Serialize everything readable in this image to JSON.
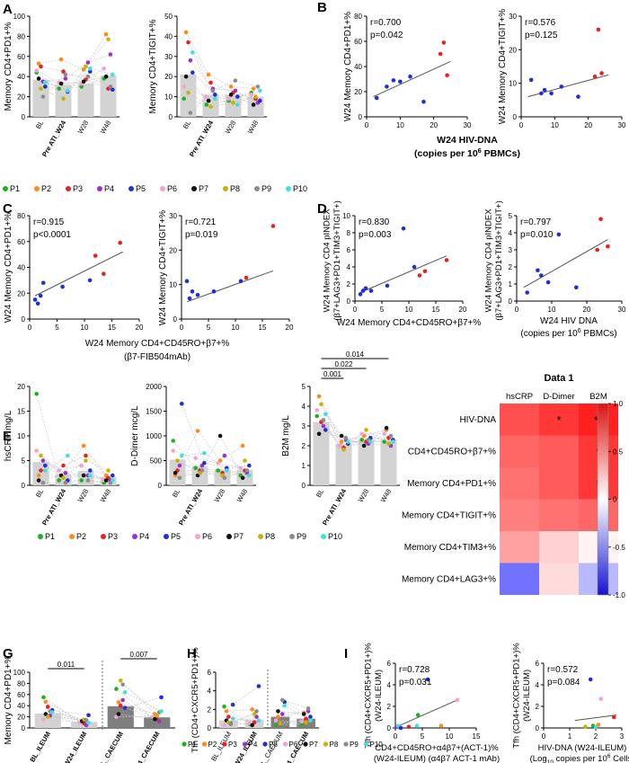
{
  "panels": [
    "A",
    "B",
    "C",
    "D",
    "E",
    "F",
    "G",
    "H",
    "I"
  ],
  "legend_patients": [
    "P1",
    "P2",
    "P3",
    "P4",
    "P5",
    "P6",
    "P7",
    "P8",
    "P9",
    "P10"
  ],
  "colors": {
    "patients": [
      "#1db31d",
      "#ff8c1a",
      "#e62222",
      "#9b30d0",
      "#1f2fd6",
      "#f5a0d8",
      "#111111",
      "#c8b400",
      "#8c8c8c",
      "#40e0e0"
    ],
    "bar_light": "#d3d3d3",
    "bar_dark": "#7f7f7f",
    "fit_line": "#555555"
  },
  "chart_data": [
    {
      "id": "A1",
      "type": "bar",
      "panel": "A",
      "ylabel": "Memory CD4+PD1+%",
      "categories": [
        "BL",
        "Pre ATI_W24",
        "W28",
        "W48"
      ],
      "values": [
        37,
        32,
        33,
        41
      ],
      "ylim": [
        0,
        100
      ],
      "yticks": [
        0,
        20,
        40,
        60,
        80,
        100
      ],
      "points": [
        [
          44,
          53,
          50,
          35,
          30,
          46,
          38,
          28,
          20,
          34
        ],
        [
          28,
          57,
          45,
          38,
          25,
          34,
          33,
          18,
          42,
          26
        ],
        [
          30,
          47,
          37,
          54,
          45,
          33,
          35,
          50,
          40,
          48
        ],
        [
          38,
          82,
          28,
          62,
          27,
          48,
          40,
          77,
          30,
          42
        ]
      ]
    },
    {
      "id": "A2",
      "type": "bar",
      "panel": "A",
      "ylabel": "Memory CD4+TIGIT+%",
      "categories": [
        "BL",
        "Pre ATI_W24",
        "W28",
        "W48"
      ],
      "values": [
        21,
        11,
        11,
        10
      ],
      "ylim": [
        0,
        50
      ],
      "yticks": [
        0,
        10,
        20,
        30,
        40,
        50
      ],
      "points": [
        [
          9,
          42,
          37,
          28,
          22,
          15,
          20,
          12,
          2,
          32
        ],
        [
          6,
          21,
          17,
          14,
          11,
          10,
          8,
          5,
          13,
          9
        ],
        [
          8,
          15,
          12,
          13,
          10,
          9,
          11,
          7,
          18,
          6
        ],
        [
          12,
          14,
          9,
          7,
          8,
          11,
          6,
          10,
          15,
          13
        ]
      ]
    },
    {
      "id": "B1",
      "type": "scatter",
      "panel": "B",
      "ylabel": "W24 Memory CD4+PD1+%",
      "r": "r=0.700",
      "p": "p=0.042",
      "xlim": [
        0,
        30
      ],
      "ylim": [
        0,
        80
      ],
      "xticks": [
        0,
        10,
        20,
        30
      ],
      "yticks": [
        0,
        20,
        40,
        60,
        80
      ],
      "x": [
        3,
        6,
        8,
        10,
        17,
        13,
        22,
        23,
        24
      ],
      "y": [
        15,
        24,
        29,
        28,
        12,
        32,
        50,
        59,
        33
      ],
      "c": [
        4,
        4,
        4,
        4,
        4,
        4,
        2,
        2,
        2
      ],
      "fit": [
        [
          2,
          16
        ],
        [
          25,
          44
        ]
      ]
    },
    {
      "id": "B2",
      "type": "scatter",
      "panel": "B",
      "ylabel": "W24 Memory CD4+TIGIT+%",
      "r": "r=0.576",
      "p": "p=0.125",
      "xlim": [
        0,
        30
      ],
      "ylim": [
        0,
        30
      ],
      "xticks": [
        0,
        10,
        20,
        30
      ],
      "yticks": [
        0,
        10,
        20,
        30
      ],
      "x": [
        3,
        6,
        7,
        9,
        12,
        17,
        22,
        23,
        24
      ],
      "y": [
        11,
        7,
        8,
        7,
        9,
        6,
        12,
        26,
        13
      ],
      "c": [
        4,
        4,
        4,
        4,
        4,
        4,
        2,
        2,
        2
      ],
      "fit": [
        [
          2,
          6
        ],
        [
          26,
          12.5
        ]
      ]
    },
    {
      "id": "C1",
      "type": "scatter",
      "panel": "C",
      "ylabel": "W24 Memory CD4+PD1+%",
      "r": "r=0.915",
      "p": "p<0.0001",
      "xlim": [
        0,
        20
      ],
      "ylim": [
        0,
        80
      ],
      "xticks": [
        0,
        5,
        10,
        15,
        20
      ],
      "yticks": [
        0,
        20,
        40,
        60,
        80
      ],
      "x": [
        1,
        1.5,
        2,
        2.5,
        6,
        11,
        12,
        13.5,
        16.5
      ],
      "y": [
        15,
        12,
        18,
        28,
        25,
        30,
        49,
        35,
        59
      ],
      "c": [
        4,
        4,
        4,
        4,
        4,
        4,
        2,
        2,
        2
      ],
      "fit": [
        [
          1,
          18
        ],
        [
          17,
          52
        ]
      ]
    },
    {
      "id": "C2",
      "type": "scatter",
      "panel": "C",
      "ylabel": "W24 Memory CD4+TIGIT+%",
      "r": "r=0.721",
      "p": "p=0.019",
      "xlim": [
        0,
        20
      ],
      "ylim": [
        0,
        30
      ],
      "xticks": [
        0,
        5,
        10,
        15,
        20
      ],
      "yticks": [
        0,
        10,
        20,
        30
      ],
      "x": [
        1,
        1.5,
        2,
        3,
        6,
        11,
        12,
        17
      ],
      "y": [
        11,
        6,
        8,
        7,
        8,
        11,
        12,
        27
      ],
      "c": [
        4,
        4,
        4,
        4,
        4,
        4,
        2,
        2
      ],
      "fit": [
        [
          1,
          5
        ],
        [
          17,
          14
        ]
      ]
    },
    {
      "id": "D1",
      "type": "scatter",
      "panel": "D",
      "ylabel": "W24 Memory CD4 pINDEX (β7+LAG3+PD1+TIM3+TIGIT+)",
      "r": "r=0.830",
      "p": "p=0.003",
      "xlim": [
        0,
        20
      ],
      "ylim": [
        0,
        10
      ],
      "xticks": [
        0,
        5,
        10,
        15,
        20
      ],
      "yticks": [
        0,
        2,
        4,
        6,
        8,
        10
      ],
      "x": [
        1,
        1.5,
        2,
        3,
        6,
        9,
        11,
        12,
        13,
        17
      ],
      "y": [
        0.8,
        1.2,
        1.5,
        1.2,
        1.8,
        8.5,
        4.0,
        3.0,
        3.5,
        4.8
      ],
      "c": [
        4,
        4,
        4,
        4,
        4,
        4,
        4,
        2,
        2,
        2
      ],
      "fit": [
        [
          1,
          1
        ],
        [
          17,
          5.3
        ]
      ]
    },
    {
      "id": "D2",
      "type": "scatter",
      "panel": "D",
      "ylabel": "W24 Memory CD4 pINDEX (β7+LAG3+PD1+TIM3+TIGIT+)",
      "r": "r=0.797",
      "p": "p=0.010",
      "xlim": [
        0,
        30
      ],
      "ylim": [
        0,
        5
      ],
      "xticks": [
        0,
        10,
        20,
        30
      ],
      "yticks": [
        0,
        1,
        2,
        3,
        4,
        5
      ],
      "x": [
        3,
        6,
        7,
        9,
        12,
        17,
        23,
        24,
        26
      ],
      "y": [
        0.5,
        1.8,
        1.5,
        1.1,
        3.9,
        0.8,
        3.0,
        4.8,
        3.2
      ],
      "c": [
        4,
        4,
        4,
        4,
        4,
        4,
        2,
        2,
        2
      ],
      "fit": [
        [
          2,
          0.8
        ],
        [
          26,
          3.6
        ]
      ]
    },
    {
      "id": "E1",
      "type": "bar",
      "panel": "E",
      "ylabel": "hsCRP mg/L",
      "categories": [
        "BL",
        "Pre ATI_W24",
        "W28",
        "W48"
      ],
      "values": [
        4.7,
        2.2,
        2.9,
        1.7
      ],
      "ylim": [
        0,
        20
      ],
      "yticks": [
        0,
        5,
        10,
        15,
        20
      ],
      "points": [
        [
          18.5,
          2,
          3,
          5,
          4,
          7,
          1,
          6,
          0.5,
          3
        ],
        [
          1,
          2,
          4,
          2.5,
          1,
          3,
          2,
          1.5,
          0.5,
          6
        ],
        [
          1,
          8,
          6,
          2,
          3,
          4,
          2,
          5,
          1,
          2
        ],
        [
          0.5,
          2,
          1.5,
          1,
          2,
          1,
          1,
          3,
          0.5,
          1
        ]
      ]
    },
    {
      "id": "E2",
      "type": "bar",
      "panel": "E",
      "ylabel": "D-Dimer mcg/L",
      "categories": [
        "BL",
        "Pre ATI_W24",
        "W28",
        "W48"
      ],
      "values": [
        520,
        380,
        320,
        310
      ],
      "ylim": [
        0,
        2000
      ],
      "yticks": [
        0,
        500,
        1000,
        1500,
        2000
      ],
      "points": [
        [
          900,
          200,
          300,
          400,
          1650,
          700,
          250,
          500,
          150,
          600
        ],
        [
          350,
          1100,
          300,
          400,
          450,
          550,
          200,
          250,
          300,
          650
        ],
        [
          300,
          500,
          250,
          600,
          350,
          450,
          1000,
          200,
          150,
          300
        ],
        [
          200,
          800,
          300,
          250,
          400,
          350,
          150,
          500,
          300,
          200
        ]
      ]
    },
    {
      "id": "E3",
      "type": "bar",
      "panel": "E",
      "ylabel": "B2M mg/L",
      "categories": [
        "BL",
        "Pre ATI_W24",
        "W28",
        "W48"
      ],
      "values": [
        3.2,
        2.1,
        2.3,
        2.3
      ],
      "ylim": [
        0,
        5
      ],
      "yticks": [
        0,
        1,
        2,
        3,
        4,
        5
      ],
      "points": [
        [
          3.5,
          4.5,
          3.2,
          3.0,
          2.8,
          3.8,
          2.6,
          4.1,
          3.3,
          3.6
        ],
        [
          2.0,
          2.2,
          1.9,
          2.3,
          2.1,
          2.0,
          2.5,
          1.8,
          2.4,
          2.2
        ],
        [
          2.3,
          2.5,
          2.2,
          2.1,
          2.4,
          2.6,
          2.0,
          2.8,
          2.3,
          2.2
        ],
        [
          2.2,
          2.8,
          2.4,
          2.0,
          2.3,
          2.6,
          2.9,
          2.1,
          2.5,
          2.2
        ]
      ],
      "brackets": [
        {
          "from": 0,
          "to": 1,
          "label": "0.001"
        },
        {
          "from": 0,
          "to": 2,
          "label": "0.022"
        },
        {
          "from": 0,
          "to": 3,
          "label": "0.014"
        }
      ]
    },
    {
      "id": "F",
      "type": "heatmap",
      "panel": "F",
      "title": "Data 1",
      "columns": [
        "hsCRP",
        "D-Dimer",
        "B2M"
      ],
      "rows": [
        "HIV-DNA",
        "CD4+CD45RO+β7+%",
        "Memory CD4+PD1+%",
        "Memory CD4+TIGIT+%",
        "Memory CD4+TIM3+%",
        "Memory CD4+LAG3+%"
      ],
      "values": [
        [
          0.75,
          0.85,
          0.95
        ],
        [
          0.65,
          0.7,
          0.85
        ],
        [
          0.6,
          0.7,
          0.85
        ],
        [
          0.55,
          0.6,
          0.65
        ],
        [
          0.4,
          0.2,
          0.05
        ],
        [
          -0.6,
          0.15,
          -0.3
        ]
      ],
      "stars": [
        [
          "",
          "*",
          "**"
        ],
        [
          "",
          "",
          "*"
        ],
        [
          "",
          "",
          "*"
        ],
        [
          "",
          "",
          ""
        ],
        [
          "",
          "",
          ""
        ],
        [
          "",
          "",
          ""
        ]
      ],
      "scale_ticks": [
        "1.0",
        "0.5",
        "0",
        "-0.5",
        "-1.0"
      ]
    },
    {
      "id": "G",
      "type": "bar",
      "panel": "G",
      "ylabel": "Memory CD4+PD1+%",
      "categories": [
        "BL_ILEUM",
        "Pre ATI_W24_ILEUM",
        "BL_CAECUM",
        "Pre ATI_W24_CAECUM"
      ],
      "values": [
        26,
        11,
        39,
        19
      ],
      "ylim": [
        0,
        100
      ],
      "yticks": [
        0,
        20,
        40,
        60,
        80,
        100
      ],
      "points": [
        [
          55,
          47,
          38,
          22,
          32,
          15,
          25,
          20,
          30,
          28
        ],
        [
          10,
          13,
          8,
          5,
          23,
          10,
          12,
          15,
          14,
          9
        ],
        [
          70,
          46,
          40,
          50,
          36,
          20,
          25,
          85,
          78,
          64
        ],
        [
          18,
          25,
          15,
          12,
          55,
          20,
          16,
          22,
          28,
          30
        ]
      ],
      "brackets": [
        {
          "from": 0,
          "to": 1,
          "label": "0.011"
        },
        {
          "from": 2,
          "to": 3,
          "label": "0.007"
        }
      ]
    },
    {
      "id": "H",
      "type": "bar",
      "panel": "H",
      "ylabel": "Tfh (CD4+CXCR5+PD1+)%",
      "categories": [
        "BL_ILEUM",
        "Pre ATI_W24_ILEUM",
        "BL_CAECUM",
        "Pre ATI_W24_CAECUM"
      ],
      "values": [
        0.8,
        0.9,
        1.2,
        1.0
      ],
      "ylim": [
        0,
        6
      ],
      "yticks": [
        0,
        2,
        4,
        6
      ],
      "points": [
        [
          2.3,
          1.8,
          1.2,
          0.5,
          2.5,
          0.3,
          0.8,
          0.6,
          0.4,
          1.0
        ],
        [
          0.4,
          2.0,
          0.6,
          1.2,
          4.5,
          0.5,
          0.3,
          1.5,
          1.8,
          0.8
        ],
        [
          0.3,
          1.2,
          0.5,
          1.5,
          2.8,
          0.8,
          1.8,
          0.5,
          3.0,
          2.4
        ],
        [
          0.4,
          1.6,
          1.0,
          1.8,
          1.2,
          0.7,
          1.5,
          0.6,
          2.1,
          0.8
        ]
      ]
    },
    {
      "id": "I1",
      "type": "scatter",
      "panel": "I",
      "ylabel": "Tfh (CD4+CXCR5+PD1+)% (W24-ILEUM)",
      "r": "r=0.728",
      "p": "p=0.031",
      "xlim": [
        0,
        15
      ],
      "ylim": [
        0,
        6
      ],
      "xticks": [
        0,
        5,
        10,
        15
      ],
      "yticks": [
        0,
        2,
        4,
        6
      ],
      "x": [
        0.2,
        0.5,
        1,
        2.5,
        4,
        4.2,
        6,
        8.5,
        11.5
      ],
      "y": [
        0.1,
        0.2,
        0,
        0.1,
        0.2,
        1.2,
        4.5,
        0.2,
        2.6
      ],
      "c": [
        3,
        9,
        4,
        2,
        9,
        0,
        4,
        1,
        5
      ],
      "fit": [
        [
          0.2,
          0.1
        ],
        [
          11.5,
          2.6
        ]
      ]
    },
    {
      "id": "I2",
      "type": "scatter",
      "panel": "I",
      "ylabel": "Tfh (CD4+CXCR5+PD1+)% (W24-ILEUM)",
      "r": "r=0.572",
      "p": "p=0.084",
      "xlim": [
        0,
        3
      ],
      "ylim": [
        0,
        6
      ],
      "xticks": [
        0,
        1,
        2,
        3
      ],
      "yticks": [
        0,
        2,
        4,
        6
      ],
      "x": [
        1.6,
        1.8,
        1.9,
        2.0,
        2.1,
        2.2,
        2.7
      ],
      "y": [
        0.1,
        4.5,
        0.2,
        0.1,
        0.3,
        2.7,
        1.0
      ],
      "c": [
        7,
        4,
        0,
        9,
        1,
        5,
        2
      ],
      "fit": [
        [
          1.2,
          0.7
        ],
        [
          2.8,
          1.2
        ]
      ]
    }
  ],
  "xlabels": {
    "B": [
      "W24 HIV-DNA",
      "(copies per 10",
      "6",
      " PBMCs)"
    ],
    "C": [
      "W24 Memory CD4+CD45RO+β7+%",
      "(β7-FIB504mAb)"
    ],
    "D1": "W24 Memory CD4+CD45RO+β7+%",
    "D2": [
      "W24 HIV DNA",
      "(copies per 10",
      "6",
      " PBMCs)"
    ],
    "I1": [
      "CD4+CD45RO+α4β7+(ACT-1)%",
      "(W24-ILEUM) (α4β7 ACT-1 mAb)"
    ],
    "I2": [
      "HIV-DNA (W24-ILEUM)",
      "(Log",
      "10",
      " copies per 10",
      "6",
      " Cells)"
    ]
  },
  "d_ylabel_lines": [
    "W24 Memory CD4 pINDEX",
    "(β7+LAG3+PD1+TIM3+TIGIT+)"
  ],
  "i_ylabel_lines": [
    "Tfh (CD4+CXCR5+PD1+)%",
    "(W24-ILEUM)"
  ]
}
